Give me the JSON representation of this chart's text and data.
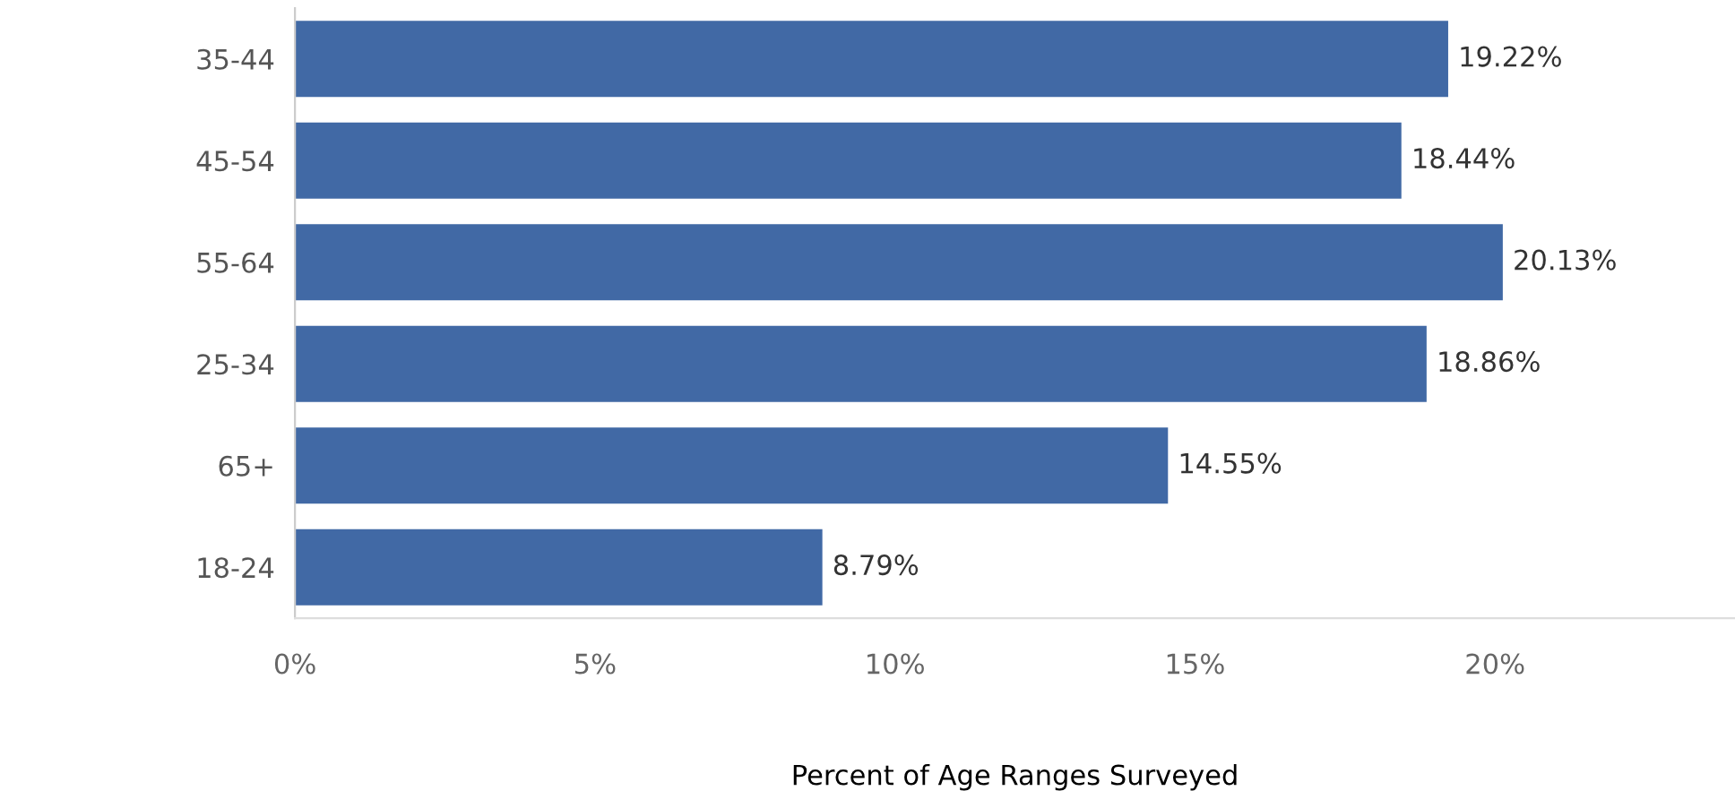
{
  "chart_data": {
    "type": "bar",
    "orientation": "horizontal",
    "xlabel": "Percent of Age Ranges Surveyed",
    "categories": [
      "35-44",
      "45-54",
      "55-64",
      "25-34",
      "65+",
      "18-24"
    ],
    "values": [
      19.22,
      18.44,
      20.13,
      18.86,
      14.55,
      8.79
    ],
    "value_labels": [
      "19.22%",
      "18.44%",
      "20.13%",
      "18.86%",
      "14.55%",
      "8.79%"
    ],
    "color": "#4169a5",
    "xlim": [
      0,
      24
    ],
    "xticks": [
      {
        "value": 0,
        "label": "0%"
      },
      {
        "value": 5,
        "label": "5%"
      },
      {
        "value": 10,
        "label": "10%"
      },
      {
        "value": 15,
        "label": "15%"
      },
      {
        "value": 20,
        "label": "20%"
      }
    ],
    "grid": false
  }
}
